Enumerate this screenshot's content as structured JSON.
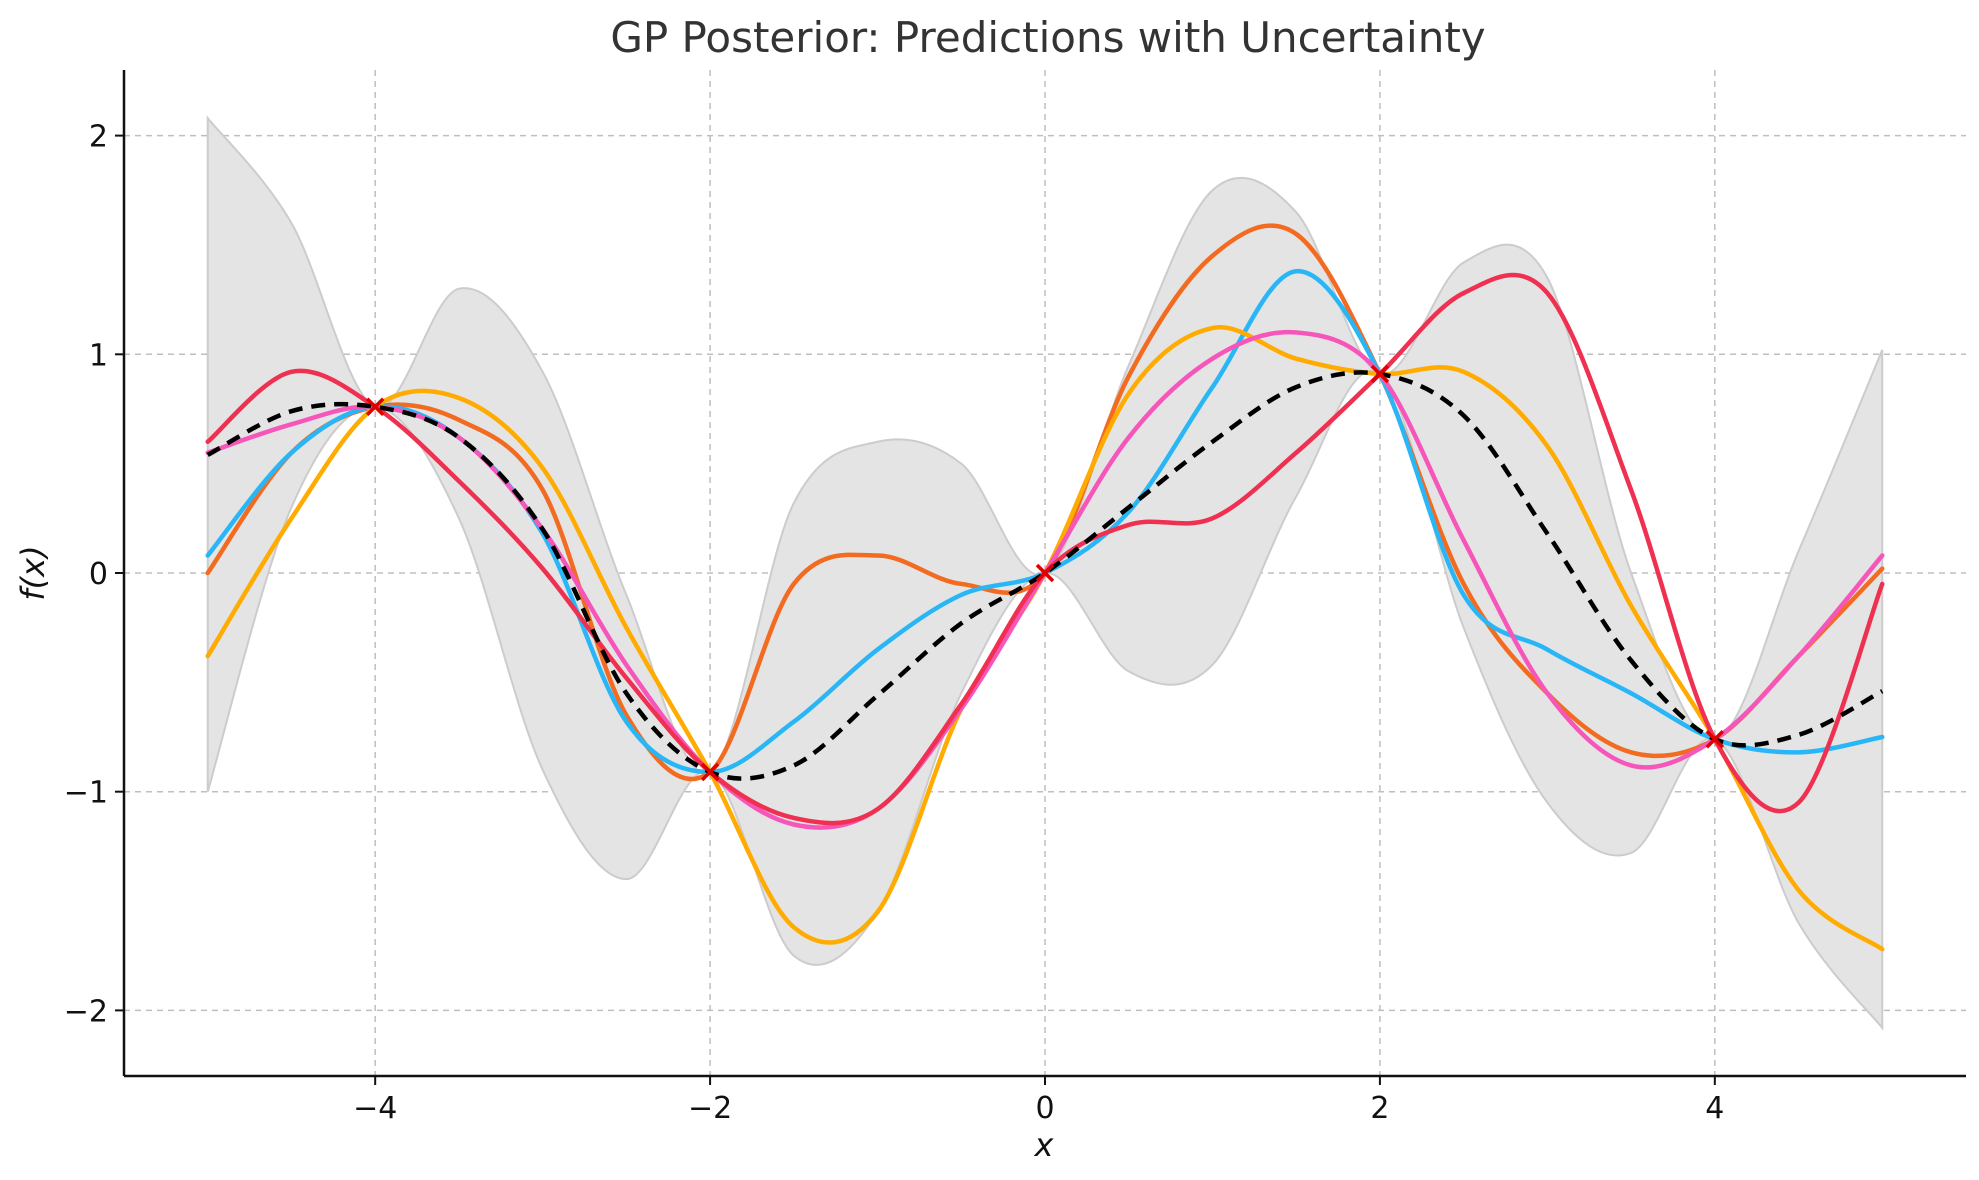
{
  "chart_data": {
    "type": "line",
    "title": "GP Posterior: Predictions with Uncertainty",
    "xlabel": "x",
    "ylabel": "f(x)",
    "xlim": [
      -5.5,
      5.5
    ],
    "ylim": [
      -2.3,
      2.3
    ],
    "grid": true,
    "x_ticks": [
      -4,
      -2,
      0,
      2,
      4
    ],
    "x_tick_labels": [
      "−4",
      "−2",
      "0",
      "2",
      "4"
    ],
    "y_ticks": [
      -2,
      -1,
      0,
      1,
      2
    ],
    "y_tick_labels": [
      "−2",
      "−1",
      "0",
      "1",
      "2"
    ],
    "x": [
      -5,
      -4.5,
      -4,
      -3.5,
      -3,
      -2.5,
      -2,
      -1.5,
      -1,
      -0.5,
      0,
      0.5,
      1,
      1.5,
      2,
      2.5,
      3,
      3.5,
      4,
      4.5,
      5
    ],
    "confidence_band": {
      "upper": [
        2.08,
        1.6,
        0.76,
        1.3,
        0.92,
        -0.1,
        -0.91,
        0.32,
        0.6,
        0.5,
        0.0,
        0.95,
        1.75,
        1.65,
        0.91,
        1.42,
        1.35,
        0.0,
        -0.76,
        0.1,
        1.02
      ],
      "lower": [
        -1.0,
        0.3,
        0.76,
        0.25,
        -0.9,
        -1.4,
        -0.91,
        -1.75,
        -1.55,
        -0.55,
        0.0,
        -0.45,
        -0.42,
        0.35,
        0.91,
        -0.25,
        -1.05,
        -1.28,
        -0.76,
        -1.6,
        -2.08
      ],
      "color": "#e4e4e4"
    },
    "mean": {
      "values": [
        0.54,
        0.74,
        0.76,
        0.62,
        0.2,
        -0.55,
        -0.91,
        -0.88,
        -0.56,
        -0.23,
        0.0,
        0.3,
        0.6,
        0.85,
        0.91,
        0.72,
        0.18,
        -0.4,
        -0.76,
        -0.74,
        -0.54
      ],
      "color": "#000000"
    },
    "series": [
      {
        "values": [
          0.0,
          0.55,
          0.76,
          0.7,
          0.38,
          -0.65,
          -0.91,
          -0.05,
          0.08,
          -0.05,
          0.0,
          0.9,
          1.45,
          1.55,
          0.91,
          -0.05,
          -0.55,
          -0.82,
          -0.76,
          -0.38,
          0.02
        ],
        "color": "#f26b21"
      },
      {
        "values": [
          0.08,
          0.55,
          0.76,
          0.62,
          0.18,
          -0.68,
          -0.91,
          -0.68,
          -0.35,
          -0.1,
          0.0,
          0.28,
          0.85,
          1.38,
          0.91,
          -0.1,
          -0.35,
          -0.55,
          -0.76,
          -0.82,
          -0.75
        ],
        "color": "#29b6f6"
      },
      {
        "values": [
          -0.38,
          0.25,
          0.76,
          0.8,
          0.48,
          -0.25,
          -0.91,
          -1.62,
          -1.55,
          -0.62,
          0.0,
          0.82,
          1.12,
          0.98,
          0.91,
          0.92,
          0.58,
          -0.15,
          -0.76,
          -1.45,
          -1.72
        ],
        "color": "#ffab00"
      },
      {
        "values": [
          0.55,
          0.68,
          0.76,
          0.62,
          0.2,
          -0.42,
          -0.91,
          -1.15,
          -1.08,
          -0.62,
          0.0,
          0.62,
          0.98,
          1.1,
          0.91,
          0.15,
          -0.55,
          -0.88,
          -0.76,
          -0.38,
          0.08
        ],
        "color": "#f655b9"
      },
      {
        "values": [
          0.6,
          0.92,
          0.76,
          0.42,
          0.02,
          -0.48,
          -0.91,
          -1.12,
          -1.08,
          -0.6,
          0.0,
          0.22,
          0.25,
          0.55,
          0.91,
          1.28,
          1.28,
          0.38,
          -0.76,
          -1.05,
          -0.05
        ],
        "color": "#ef3050"
      }
    ],
    "observations": {
      "x": [
        -4,
        -2,
        0,
        2,
        4
      ],
      "y": [
        0.76,
        -0.91,
        0.0,
        0.91,
        -0.76
      ],
      "color": "#e00000"
    }
  }
}
